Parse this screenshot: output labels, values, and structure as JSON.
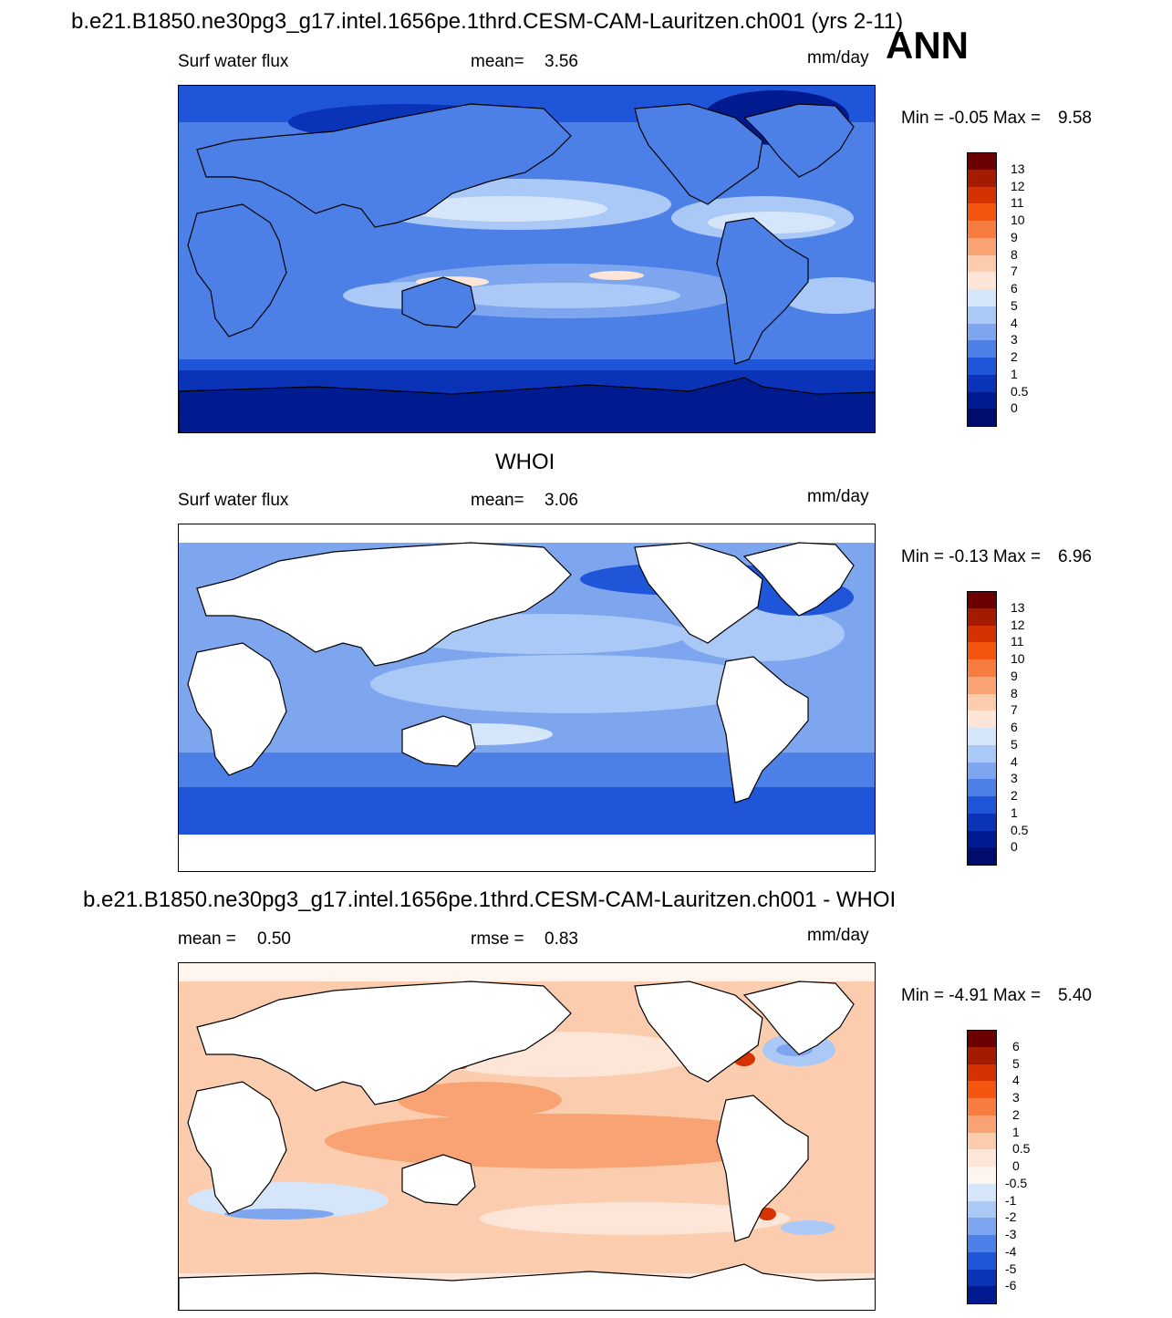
{
  "header": {
    "case_title": "b.e21.B1850.ne30pg3_g17.intel.1656pe.1thrd.CESM-CAM-Lauritzen.ch001 (yrs 2-11)",
    "season": "ANN"
  },
  "panels": [
    {
      "variable": "Surf water flux",
      "stat1_label": "mean=",
      "stat1_value": "3.56",
      "units": "mm/day",
      "minmax_label": "Min =  -0.05 Max =",
      "max_value": "9.58",
      "cbar_labels": [
        "13",
        "12",
        "11",
        "10",
        "9",
        "8",
        "7",
        "6",
        "5",
        "4",
        "3",
        "2",
        "1",
        "0.5",
        "0"
      ]
    },
    {
      "title": "WHOI",
      "variable": "Surf water flux",
      "stat1_label": "mean=",
      "stat1_value": "3.06",
      "units": "mm/day",
      "minmax_label": "Min =  -0.13 Max =",
      "max_value": "6.96",
      "cbar_labels": [
        "13",
        "12",
        "11",
        "10",
        "9",
        "8",
        "7",
        "6",
        "5",
        "4",
        "3",
        "2",
        "1",
        "0.5",
        "0"
      ]
    },
    {
      "title": "b.e21.B1850.ne30pg3_g17.intel.1656pe.1thrd.CESM-CAM-Lauritzen.ch001 - WHOI",
      "stat1_label": "mean =",
      "stat1_value": "0.50",
      "stat2_label": "rmse =",
      "stat2_value": "0.83",
      "units": "mm/day",
      "minmax_label": "Min =  -4.91 Max =",
      "max_value": "5.40",
      "cbar_labels": [
        "6",
        "5",
        "4",
        "3",
        "2",
        "1",
        "0.5",
        "0",
        "-0.5",
        "-1",
        "-2",
        "-3",
        "-4",
        "-5",
        "-6"
      ]
    }
  ],
  "colors": {
    "abs_scale": [
      "#6b0000",
      "#a31b00",
      "#d43200",
      "#f4560f",
      "#f77c40",
      "#f9a375",
      "#fbcdae",
      "#fde6d8",
      "#d5e6fb",
      "#aac9f6",
      "#7ea6ef",
      "#4d80e6",
      "#1f55d9",
      "#0a33b8",
      "#001a8f",
      "#000c6b"
    ],
    "diff_scale": [
      "#6b0000",
      "#a31b00",
      "#d43200",
      "#f4560f",
      "#f77c40",
      "#f9a375",
      "#fbcdae",
      "#fde6d8",
      "#fdf5ee",
      "#d5e6fb",
      "#aac9f6",
      "#7ea6ef",
      "#4d80e6",
      "#1f55d9",
      "#0a33b8",
      "#001a8f"
    ],
    "land": "#ffffff",
    "coast": "#000000"
  }
}
